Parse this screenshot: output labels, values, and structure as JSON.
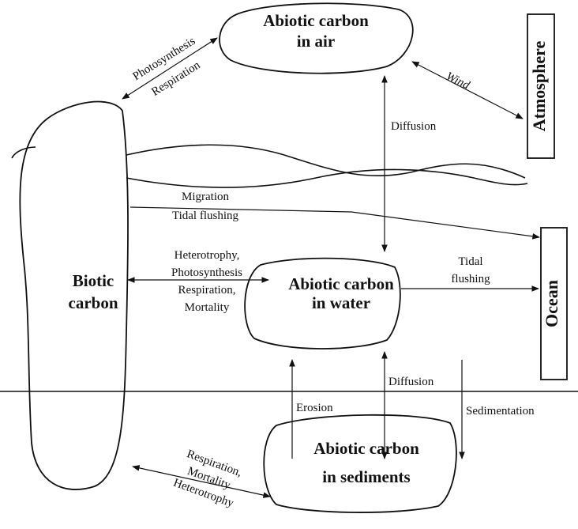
{
  "nodes": [
    {
      "lines": [
        "Abiotic carbon",
        "in air"
      ]
    },
    {
      "lines": [
        "Biotic",
        "carbon"
      ]
    },
    {
      "lines": [
        "Abiotic carbon",
        "in water"
      ]
    },
    {
      "lines": [
        "Abiotic carbon",
        "in sediments"
      ]
    },
    {
      "lines": [
        "Atmosphere"
      ]
    },
    {
      "lines": [
        "Ocean"
      ]
    }
  ],
  "labels": [
    {
      "lines": [
        "Photosynthesis"
      ]
    },
    {
      "lines": [
        "Respiration"
      ]
    },
    {
      "lines": [
        "Wind"
      ]
    },
    {
      "lines": [
        "Diffusion"
      ]
    },
    {
      "lines": [
        "Migration",
        "Tidal flushing"
      ]
    },
    {
      "lines": [
        "Heterotrophy,",
        "Photosynthesis",
        "Respiration,",
        "Mortality"
      ]
    },
    {
      "lines": [
        "Tidal",
        "flushing"
      ]
    },
    {
      "lines": [
        "Diffusion"
      ]
    },
    {
      "lines": [
        "Erosion"
      ]
    },
    {
      "lines": [
        "Sedimentation"
      ]
    },
    {
      "lines": [
        "Respiration,",
        "Mortality",
        "Heterotrophy"
      ]
    }
  ]
}
